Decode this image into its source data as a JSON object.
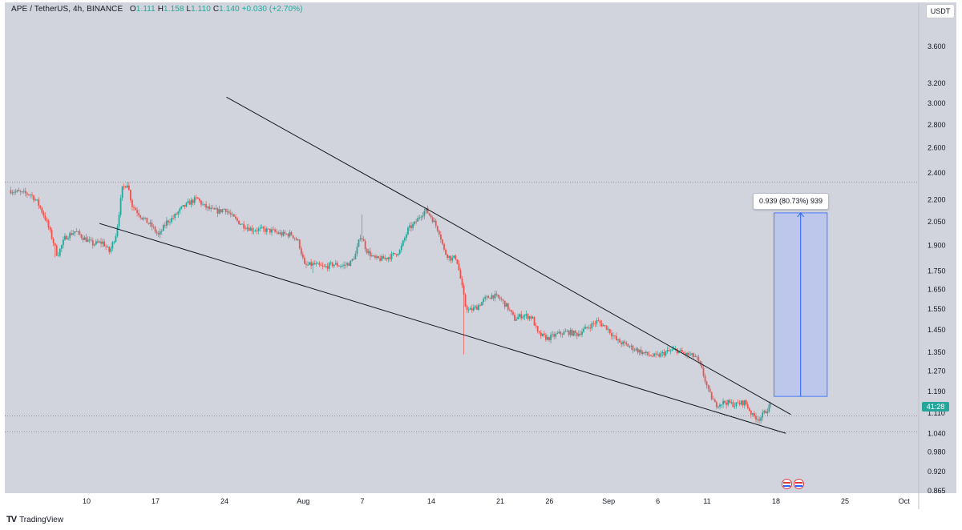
{
  "legend": {
    "symbol": "APE / TetherUS, 4h, BINANCE",
    "o_label": "O",
    "o_value": "1.111",
    "h_label": "H",
    "h_value": "1.158",
    "l_label": "L",
    "l_value": "1.110",
    "c_label": "C",
    "c_value": "1.140",
    "change": "+0.030 (+2.70%)"
  },
  "currency_button": "USDT",
  "price_badge": "41:28",
  "measure_label": "0.939 (80.73%) 939",
  "brand": {
    "logo": "TV",
    "name": "TradingView"
  },
  "colors": {
    "up": "#26a69a",
    "down": "#ef5350",
    "background": "#d1d4dc",
    "measure_fill": "#b4c3f0",
    "measure_line": "#2962ff"
  },
  "chart_data": {
    "type": "candlestick",
    "title": "APE / TetherUS, 4h, BINANCE",
    "yscale": "log",
    "ylim": [
      0.865,
      3.9
    ],
    "y_ticks": [
      {
        "value": 3.6,
        "label": "3.600"
      },
      {
        "value": 3.2,
        "label": "3.200"
      },
      {
        "value": 3.0,
        "label": "3.000"
      },
      {
        "value": 2.8,
        "label": "2.800"
      },
      {
        "value": 2.6,
        "label": "2.600"
      },
      {
        "value": 2.4,
        "label": "2.400"
      },
      {
        "value": 2.2,
        "label": "2.200"
      },
      {
        "value": 2.05,
        "label": "2.050"
      },
      {
        "value": 1.9,
        "label": "1.900"
      },
      {
        "value": 1.75,
        "label": "1.750"
      },
      {
        "value": 1.65,
        "label": "1.650"
      },
      {
        "value": 1.55,
        "label": "1.550"
      },
      {
        "value": 1.45,
        "label": "1.450"
      },
      {
        "value": 1.35,
        "label": "1.350"
      },
      {
        "value": 1.27,
        "label": "1.270"
      },
      {
        "value": 1.19,
        "label": "1.190"
      },
      {
        "value": 1.11,
        "label": "1.110"
      },
      {
        "value": 1.04,
        "label": "1.040"
      },
      {
        "value": 0.98,
        "label": "0.980"
      },
      {
        "value": 0.92,
        "label": "0.920"
      },
      {
        "value": 0.865,
        "label": "0.865"
      }
    ],
    "x_ticks": [
      {
        "label": "10",
        "day": 10
      },
      {
        "label": "17",
        "day": 17
      },
      {
        "label": "24",
        "day": 24
      },
      {
        "label": "Aug",
        "day": 32
      },
      {
        "label": "7",
        "day": 38
      },
      {
        "label": "14",
        "day": 45
      },
      {
        "label": "21",
        "day": 52
      },
      {
        "label": "26",
        "day": 57
      },
      {
        "label": "Sep",
        "day": 63
      },
      {
        "label": "6",
        "day": 68
      },
      {
        "label": "11",
        "day": 73
      },
      {
        "label": "18",
        "day": 80
      },
      {
        "label": "25",
        "day": 87
      },
      {
        "label": "Oct",
        "day": 93
      }
    ],
    "x_axis_unit": "day of July",
    "xlim": [
      2.2,
      96.0
    ],
    "path": [
      [
        2.3,
        2.27
      ],
      [
        3.5,
        2.25
      ],
      [
        4.5,
        2.24
      ],
      [
        5.2,
        2.18
      ],
      [
        6.0,
        2.07
      ],
      [
        6.8,
        1.92
      ],
      [
        7.2,
        1.84
      ],
      [
        8.0,
        1.95
      ],
      [
        9.0,
        1.99
      ],
      [
        9.8,
        1.95
      ],
      [
        10.8,
        1.91
      ],
      [
        11.8,
        1.92
      ],
      [
        12.5,
        1.86
      ],
      [
        13.2,
        1.98
      ],
      [
        13.8,
        2.28
      ],
      [
        14.3,
        2.32
      ],
      [
        14.8,
        2.16
      ],
      [
        15.8,
        2.08
      ],
      [
        16.8,
        2.02
      ],
      [
        17.5,
        1.96
      ],
      [
        18.3,
        2.05
      ],
      [
        19.0,
        2.08
      ],
      [
        19.8,
        2.14
      ],
      [
        20.6,
        2.18
      ],
      [
        21.4,
        2.21
      ],
      [
        22.0,
        2.16
      ],
      [
        22.8,
        2.13
      ],
      [
        23.6,
        2.12
      ],
      [
        24.2,
        2.14
      ],
      [
        25.0,
        2.08
      ],
      [
        26.0,
        2.03
      ],
      [
        27.0,
        2.0
      ],
      [
        28.0,
        2.0
      ],
      [
        29.0,
        1.99
      ],
      [
        30.0,
        1.97
      ],
      [
        31.0,
        1.97
      ],
      [
        31.7,
        1.92
      ],
      [
        32.3,
        1.78
      ],
      [
        33.2,
        1.79
      ],
      [
        34.2,
        1.77
      ],
      [
        35.2,
        1.79
      ],
      [
        36.2,
        1.78
      ],
      [
        37.0,
        1.8
      ],
      [
        37.5,
        1.85
      ],
      [
        38.0,
        1.97
      ],
      [
        38.6,
        1.87
      ],
      [
        39.4,
        1.82
      ],
      [
        40.2,
        1.82
      ],
      [
        41.2,
        1.84
      ],
      [
        42.0,
        1.87
      ],
      [
        42.8,
        2.0
      ],
      [
        43.5,
        2.04
      ],
      [
        44.0,
        2.09
      ],
      [
        44.6,
        2.13
      ],
      [
        45.2,
        2.08
      ],
      [
        46.0,
        1.98
      ],
      [
        46.5,
        1.86
      ],
      [
        47.2,
        1.82
      ],
      [
        47.7,
        1.83
      ],
      [
        48.2,
        1.69
      ],
      [
        48.6,
        1.57
      ],
      [
        49.0,
        1.54
      ],
      [
        49.8,
        1.56
      ],
      [
        50.6,
        1.6
      ],
      [
        51.4,
        1.62
      ],
      [
        52.2,
        1.6
      ],
      [
        52.9,
        1.56
      ],
      [
        53.6,
        1.5
      ],
      [
        54.4,
        1.52
      ],
      [
        55.4,
        1.51
      ],
      [
        56.0,
        1.43
      ],
      [
        57.0,
        1.41
      ],
      [
        58.0,
        1.43
      ],
      [
        59.0,
        1.44
      ],
      [
        60.0,
        1.43
      ],
      [
        61.0,
        1.46
      ],
      [
        62.0,
        1.49
      ],
      [
        63.0,
        1.46
      ],
      [
        64.0,
        1.4
      ],
      [
        65.0,
        1.38
      ],
      [
        66.0,
        1.36
      ],
      [
        67.0,
        1.34
      ],
      [
        68.0,
        1.33
      ],
      [
        69.0,
        1.35
      ],
      [
        70.0,
        1.36
      ],
      [
        71.0,
        1.34
      ],
      [
        72.0,
        1.33
      ],
      [
        72.6,
        1.28
      ],
      [
        73.3,
        1.19
      ],
      [
        74.0,
        1.14
      ],
      [
        75.0,
        1.15
      ],
      [
        76.0,
        1.14
      ],
      [
        77.0,
        1.15
      ],
      [
        77.8,
        1.1
      ],
      [
        78.5,
        1.09
      ],
      [
        79.2,
        1.12
      ],
      [
        79.6,
        1.14
      ]
    ],
    "spikes": [
      {
        "day": 14.1,
        "high": 2.33
      },
      {
        "day": 38.0,
        "high": 2.1
      },
      {
        "day": 48.3,
        "low": 1.34
      },
      {
        "day": 33.0,
        "low": 1.74
      },
      {
        "day": 6.8,
        "low": 1.83
      }
    ],
    "trendlines": [
      {
        "name": "upper",
        "points": [
          [
            24.2,
            3.06
          ],
          [
            45.0,
            2.12
          ],
          [
            81.5,
            1.105
          ]
        ]
      },
      {
        "name": "lower",
        "points": [
          [
            11.3,
            2.04
          ],
          [
            81.0,
            1.04
          ]
        ]
      }
    ],
    "horizontal_lines": [
      {
        "value": 2.33,
        "style": "dotted"
      },
      {
        "value": 1.1,
        "style": "dotted"
      },
      {
        "value": 1.045,
        "style": "dotted"
      }
    ],
    "measure": {
      "x_start": 79.8,
      "x_end": 85.2,
      "y_start": 1.171,
      "y_end": 2.11,
      "label": "0.939 (80.73%) 939"
    },
    "last_price": 1.14
  }
}
